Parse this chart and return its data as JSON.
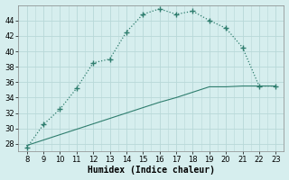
{
  "x": [
    8,
    9,
    10,
    11,
    12,
    13,
    14,
    15,
    16,
    17,
    18,
    19,
    20,
    21,
    22,
    23
  ],
  "y_curve": [
    27.5,
    30.5,
    32.5,
    35.2,
    38.5,
    39.0,
    42.5,
    44.8,
    45.5,
    44.8,
    45.2,
    44.0,
    43.0,
    40.5,
    35.5,
    35.5
  ],
  "y_line": [
    27.8,
    28.5,
    29.2,
    29.9,
    30.6,
    31.3,
    32.0,
    32.7,
    33.4,
    34.0,
    34.7,
    35.4,
    35.4,
    35.5,
    35.5,
    35.5
  ],
  "color": "#2e7d6e",
  "bg_color": "#d6eeee",
  "grid_color": "#b8d8d8",
  "xlabel": "Humidex (Indice chaleur)",
  "xlim": [
    7.5,
    23.5
  ],
  "ylim": [
    27,
    46
  ],
  "xticks": [
    8,
    9,
    10,
    11,
    12,
    13,
    14,
    15,
    16,
    17,
    18,
    19,
    20,
    21,
    22,
    23
  ],
  "yticks": [
    28,
    30,
    32,
    34,
    36,
    38,
    40,
    42,
    44
  ]
}
